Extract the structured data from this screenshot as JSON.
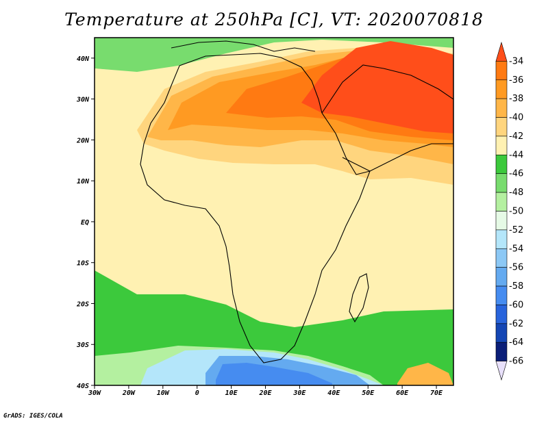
{
  "title": "Temperature at 250hPa [C], VT: 2020070818",
  "credit": "GrADS: IGES/COLA",
  "map": {
    "lon_range": [
      -30,
      75
    ],
    "lat_range": [
      -40,
      45
    ],
    "x_ticks": [
      {
        "lon": -30,
        "label": "30W"
      },
      {
        "lon": -20,
        "label": "20W"
      },
      {
        "lon": -10,
        "label": "10W"
      },
      {
        "lon": 0,
        "label": "0"
      },
      {
        "lon": 10,
        "label": "10E"
      },
      {
        "lon": 20,
        "label": "20E"
      },
      {
        "lon": 30,
        "label": "30E"
      },
      {
        "lon": 40,
        "label": "40E"
      },
      {
        "lon": 50,
        "label": "50E"
      },
      {
        "lon": 60,
        "label": "60E"
      },
      {
        "lon": 70,
        "label": "70E"
      }
    ],
    "y_ticks": [
      {
        "lat": 40,
        "label": "40N"
      },
      {
        "lat": 30,
        "label": "30N"
      },
      {
        "lat": 20,
        "label": "20N"
      },
      {
        "lat": 10,
        "label": "10N"
      },
      {
        "lat": 0,
        "label": "EQ"
      },
      {
        "lat": -10,
        "label": "10S"
      },
      {
        "lat": -20,
        "label": "20S"
      },
      {
        "lat": -30,
        "label": "30S"
      },
      {
        "lat": -40,
        "label": "40S"
      }
    ]
  },
  "colorbar": {
    "labels": [
      "-34",
      "-36",
      "-38",
      "-40",
      "-42",
      "-44",
      "-46",
      "-48",
      "-50",
      "-52",
      "-54",
      "-56",
      "-58",
      "-60",
      "-62",
      "-64",
      "-66"
    ],
    "colors": [
      "#ff4e1a",
      "#ff7a12",
      "#ff9a22",
      "#ffb648",
      "#ffd57e",
      "#fff1b2",
      "#3cc93c",
      "#78dc6e",
      "#b4f0a0",
      "#e6fae6",
      "#b4e6fa",
      "#8cc8f5",
      "#64aaf0",
      "#468cf0",
      "#2864dc",
      "#1446b4",
      "#0a1e78",
      "#e8e0fa"
    ]
  },
  "fields": {
    "background": "#fff1b2",
    "regions": [
      {
        "name": "mid-lat-green",
        "color": "#78dc6e"
      },
      {
        "name": "tropics-pale",
        "color": "#fff1b2"
      },
      {
        "name": "sahara-warm",
        "color": "#ffd57e"
      },
      {
        "name": "sahara-hot",
        "color": "#ffb648"
      },
      {
        "name": "northafrica-orange",
        "color": "#ff9a22"
      },
      {
        "name": "mideast-orange",
        "color": "#ff7a12"
      },
      {
        "name": "mideast-red",
        "color": "#ff4e1a"
      },
      {
        "name": "south-band-green",
        "color": "#3cc93c"
      },
      {
        "name": "south-light-green",
        "color": "#b4f0a0"
      },
      {
        "name": "south-cyan",
        "color": "#b4e6fa"
      },
      {
        "name": "south-blue",
        "color": "#64aaf0"
      },
      {
        "name": "south-deep-blue",
        "color": "#468cf0"
      },
      {
        "name": "sw-corner-orange",
        "color": "#ffb648"
      }
    ]
  }
}
